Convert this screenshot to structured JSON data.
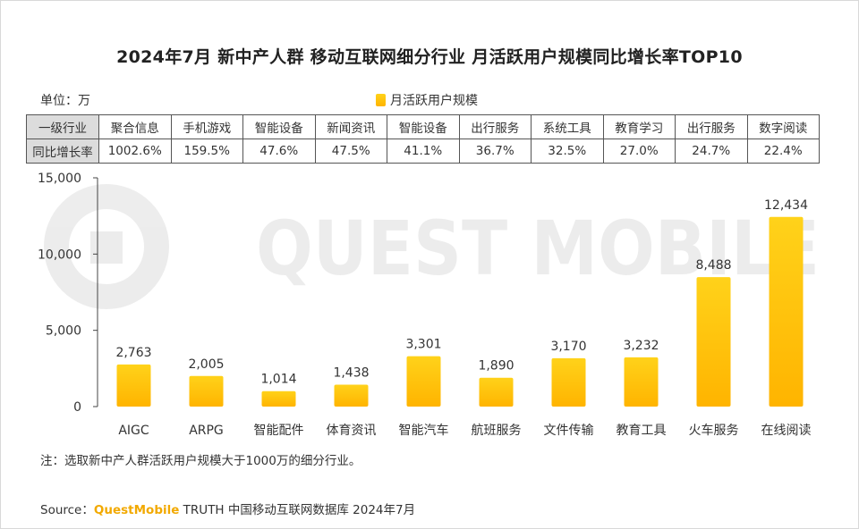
{
  "title": "2024年7月 新中产人群 移动互联网细分行业 月活跃用户规模同比增长率TOP10",
  "unit": "单位：万",
  "legend": "月活跃用户规模",
  "watermark": "QUEST MOBILE",
  "table": {
    "row1_header": "一级行业",
    "row2_header": "同比增长率",
    "industries": [
      "聚合信息",
      "手机游戏",
      "智能设备",
      "新闻资讯",
      "智能设备",
      "出行服务",
      "系统工具",
      "教育学习",
      "出行服务",
      "数字阅读"
    ],
    "growth_rates": [
      "1002.6%",
      "159.5%",
      "47.6%",
      "47.5%",
      "41.1%",
      "36.7%",
      "32.5%",
      "27.0%",
      "24.7%",
      "22.4%"
    ]
  },
  "chart_data": {
    "type": "bar",
    "title": "2024年7月 新中产人群 移动互联网细分行业 月活跃用户规模同比增长率TOP10",
    "categories": [
      "AIGC",
      "ARPG",
      "智能配件",
      "体育资讯",
      "智能汽车",
      "航班服务",
      "文件传输",
      "教育工具",
      "火车服务",
      "在线阅读"
    ],
    "series": [
      {
        "name": "月活跃用户规模",
        "values": [
          2763,
          2005,
          1014,
          1438,
          3301,
          1890,
          3170,
          3232,
          8488,
          12434
        ]
      }
    ],
    "value_labels": [
      "2,763",
      "2,005",
      "1,014",
      "1,438",
      "3,301",
      "1,890",
      "3,170",
      "3,232",
      "8,488",
      "12,434"
    ],
    "ylim": [
      0,
      15000
    ],
    "yticks": [
      0,
      5000,
      10000,
      15000
    ],
    "ytick_labels": [
      "0",
      "5,000",
      "10,000",
      "15,000"
    ],
    "grid": false,
    "legend_position": "top-center",
    "bar_color_top": "#ffd21a",
    "bar_color_bottom": "#ffb400"
  },
  "note": "注：选取新中产人群活跃用户规模大于1000万的细分行业。",
  "source": {
    "prefix": "Source：",
    "brand": "QuestMobile",
    "suffix": " TRUTH 中国移动互联网数据库 2024年7月"
  }
}
